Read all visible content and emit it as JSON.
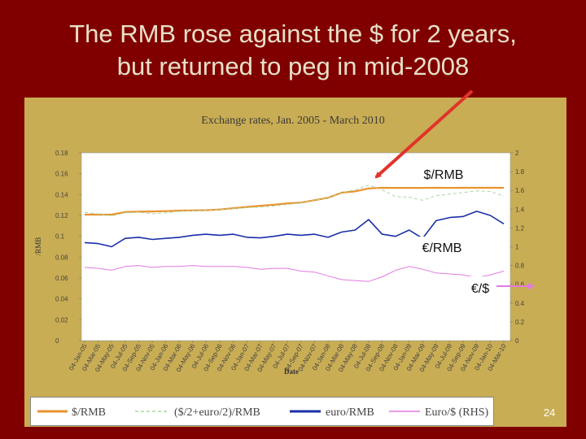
{
  "slide": {
    "title_line1": "The RMB rose against the $ for 2 years,",
    "title_line2": "but returned to peg in mid-2008",
    "page_number": "24"
  },
  "annotations": {
    "usd_rmb": "$/RMB",
    "eur_rmb": "€/RMB",
    "eur_usd": "€/$"
  },
  "colors": {
    "background": "#800000",
    "panel": "#c9ad54",
    "arrow": "#e0342a",
    "usd_rmb": "#e8932e",
    "basket": "#a9d8a0",
    "eur_rmb": "#1a2fa8",
    "eur_usd": "#e07ae0"
  },
  "chart_data": {
    "type": "line",
    "title": "Exchange rates, Jan. 2005 - March 2010",
    "xlabel": "Date",
    "ylabel": "/RMB",
    "ylim": [
      0,
      0.18
    ],
    "y2lim": [
      0,
      2
    ],
    "yticks": [
      "0",
      "0.02",
      "0.04",
      "0.06",
      "0.08",
      "0.1",
      "0.12",
      "0.14",
      "0.16",
      "0.18"
    ],
    "y2ticks": [
      "0",
      "0.2",
      "0.4",
      "0.6",
      "0.8",
      "1",
      "1.2",
      "1.4",
      "1.6",
      "1.8",
      "2"
    ],
    "categories": [
      "04-Jan-05",
      "04-Mar-05",
      "04-May-05",
      "04-Jul-05",
      "04-Sep-05",
      "04-Nov-05",
      "04-Jan-06",
      "04-Mar-06",
      "04-May-06",
      "04-Jul-06",
      "04-Sep-06",
      "04-Nov-06",
      "04-Jan-07",
      "04-Mar-07",
      "04-May-07",
      "04-Jul-07",
      "04-Sep-07",
      "04-Nov-07",
      "04-Jan-08",
      "04-Mar-08",
      "04-May-08",
      "04-Jul-08",
      "04-Sep-08",
      "04-Nov-08",
      "04-Jan-09",
      "04-Mar-09",
      "04-May-09",
      "04-Jul-09",
      "04-Sep-09",
      "04-Nov-09",
      "04-Jan-10",
      "04-Mar-10"
    ],
    "series": [
      {
        "name": "$/RMB",
        "axis": "left",
        "values": [
          0.1208,
          0.1208,
          0.1208,
          0.1233,
          0.1236,
          0.1238,
          0.1241,
          0.1246,
          0.1248,
          0.1251,
          0.1257,
          0.1269,
          0.1281,
          0.1293,
          0.1303,
          0.1315,
          0.1323,
          0.1346,
          0.1369,
          0.1418,
          0.1431,
          0.1459,
          0.1465,
          0.1464,
          0.1464,
          0.1464,
          0.1465,
          0.1464,
          0.1465,
          0.1465,
          0.1465,
          0.1465
        ]
      },
      {
        "name": "($/2+euro/2)/RMB",
        "axis": "left",
        "values": [
          0.123,
          0.1215,
          0.1195,
          0.1225,
          0.123,
          0.1215,
          0.1225,
          0.124,
          0.1245,
          0.125,
          0.1255,
          0.1265,
          0.1275,
          0.128,
          0.129,
          0.1305,
          0.132,
          0.1345,
          0.1365,
          0.142,
          0.1445,
          0.149,
          0.1445,
          0.138,
          0.1375,
          0.1345,
          0.139,
          0.1405,
          0.142,
          0.1435,
          0.143,
          0.1385
        ]
      },
      {
        "name": "euro/RMB",
        "axis": "left",
        "values": [
          0.094,
          0.093,
          0.09,
          0.098,
          0.099,
          0.097,
          0.098,
          0.099,
          0.101,
          0.102,
          0.101,
          0.102,
          0.099,
          0.0985,
          0.1,
          0.102,
          0.101,
          0.102,
          0.099,
          0.104,
          0.106,
          0.116,
          0.102,
          0.1,
          0.106,
          0.098,
          0.115,
          0.118,
          0.119,
          0.124,
          0.12,
          0.112
        ]
      },
      {
        "name": "Euro/$ (RHS)",
        "axis": "right",
        "values": [
          0.78,
          0.77,
          0.75,
          0.79,
          0.8,
          0.78,
          0.79,
          0.79,
          0.8,
          0.79,
          0.79,
          0.79,
          0.78,
          0.76,
          0.77,
          0.77,
          0.74,
          0.73,
          0.69,
          0.65,
          0.64,
          0.63,
          0.68,
          0.75,
          0.79,
          0.76,
          0.72,
          0.71,
          0.7,
          0.67,
          0.7,
          0.74
        ]
      }
    ],
    "legend": [
      "$/RMB",
      "($/2+euro/2)/RMB",
      "euro/RMB",
      "Euro/$ (RHS)"
    ],
    "legend_position": "bottom",
    "grid": false
  }
}
